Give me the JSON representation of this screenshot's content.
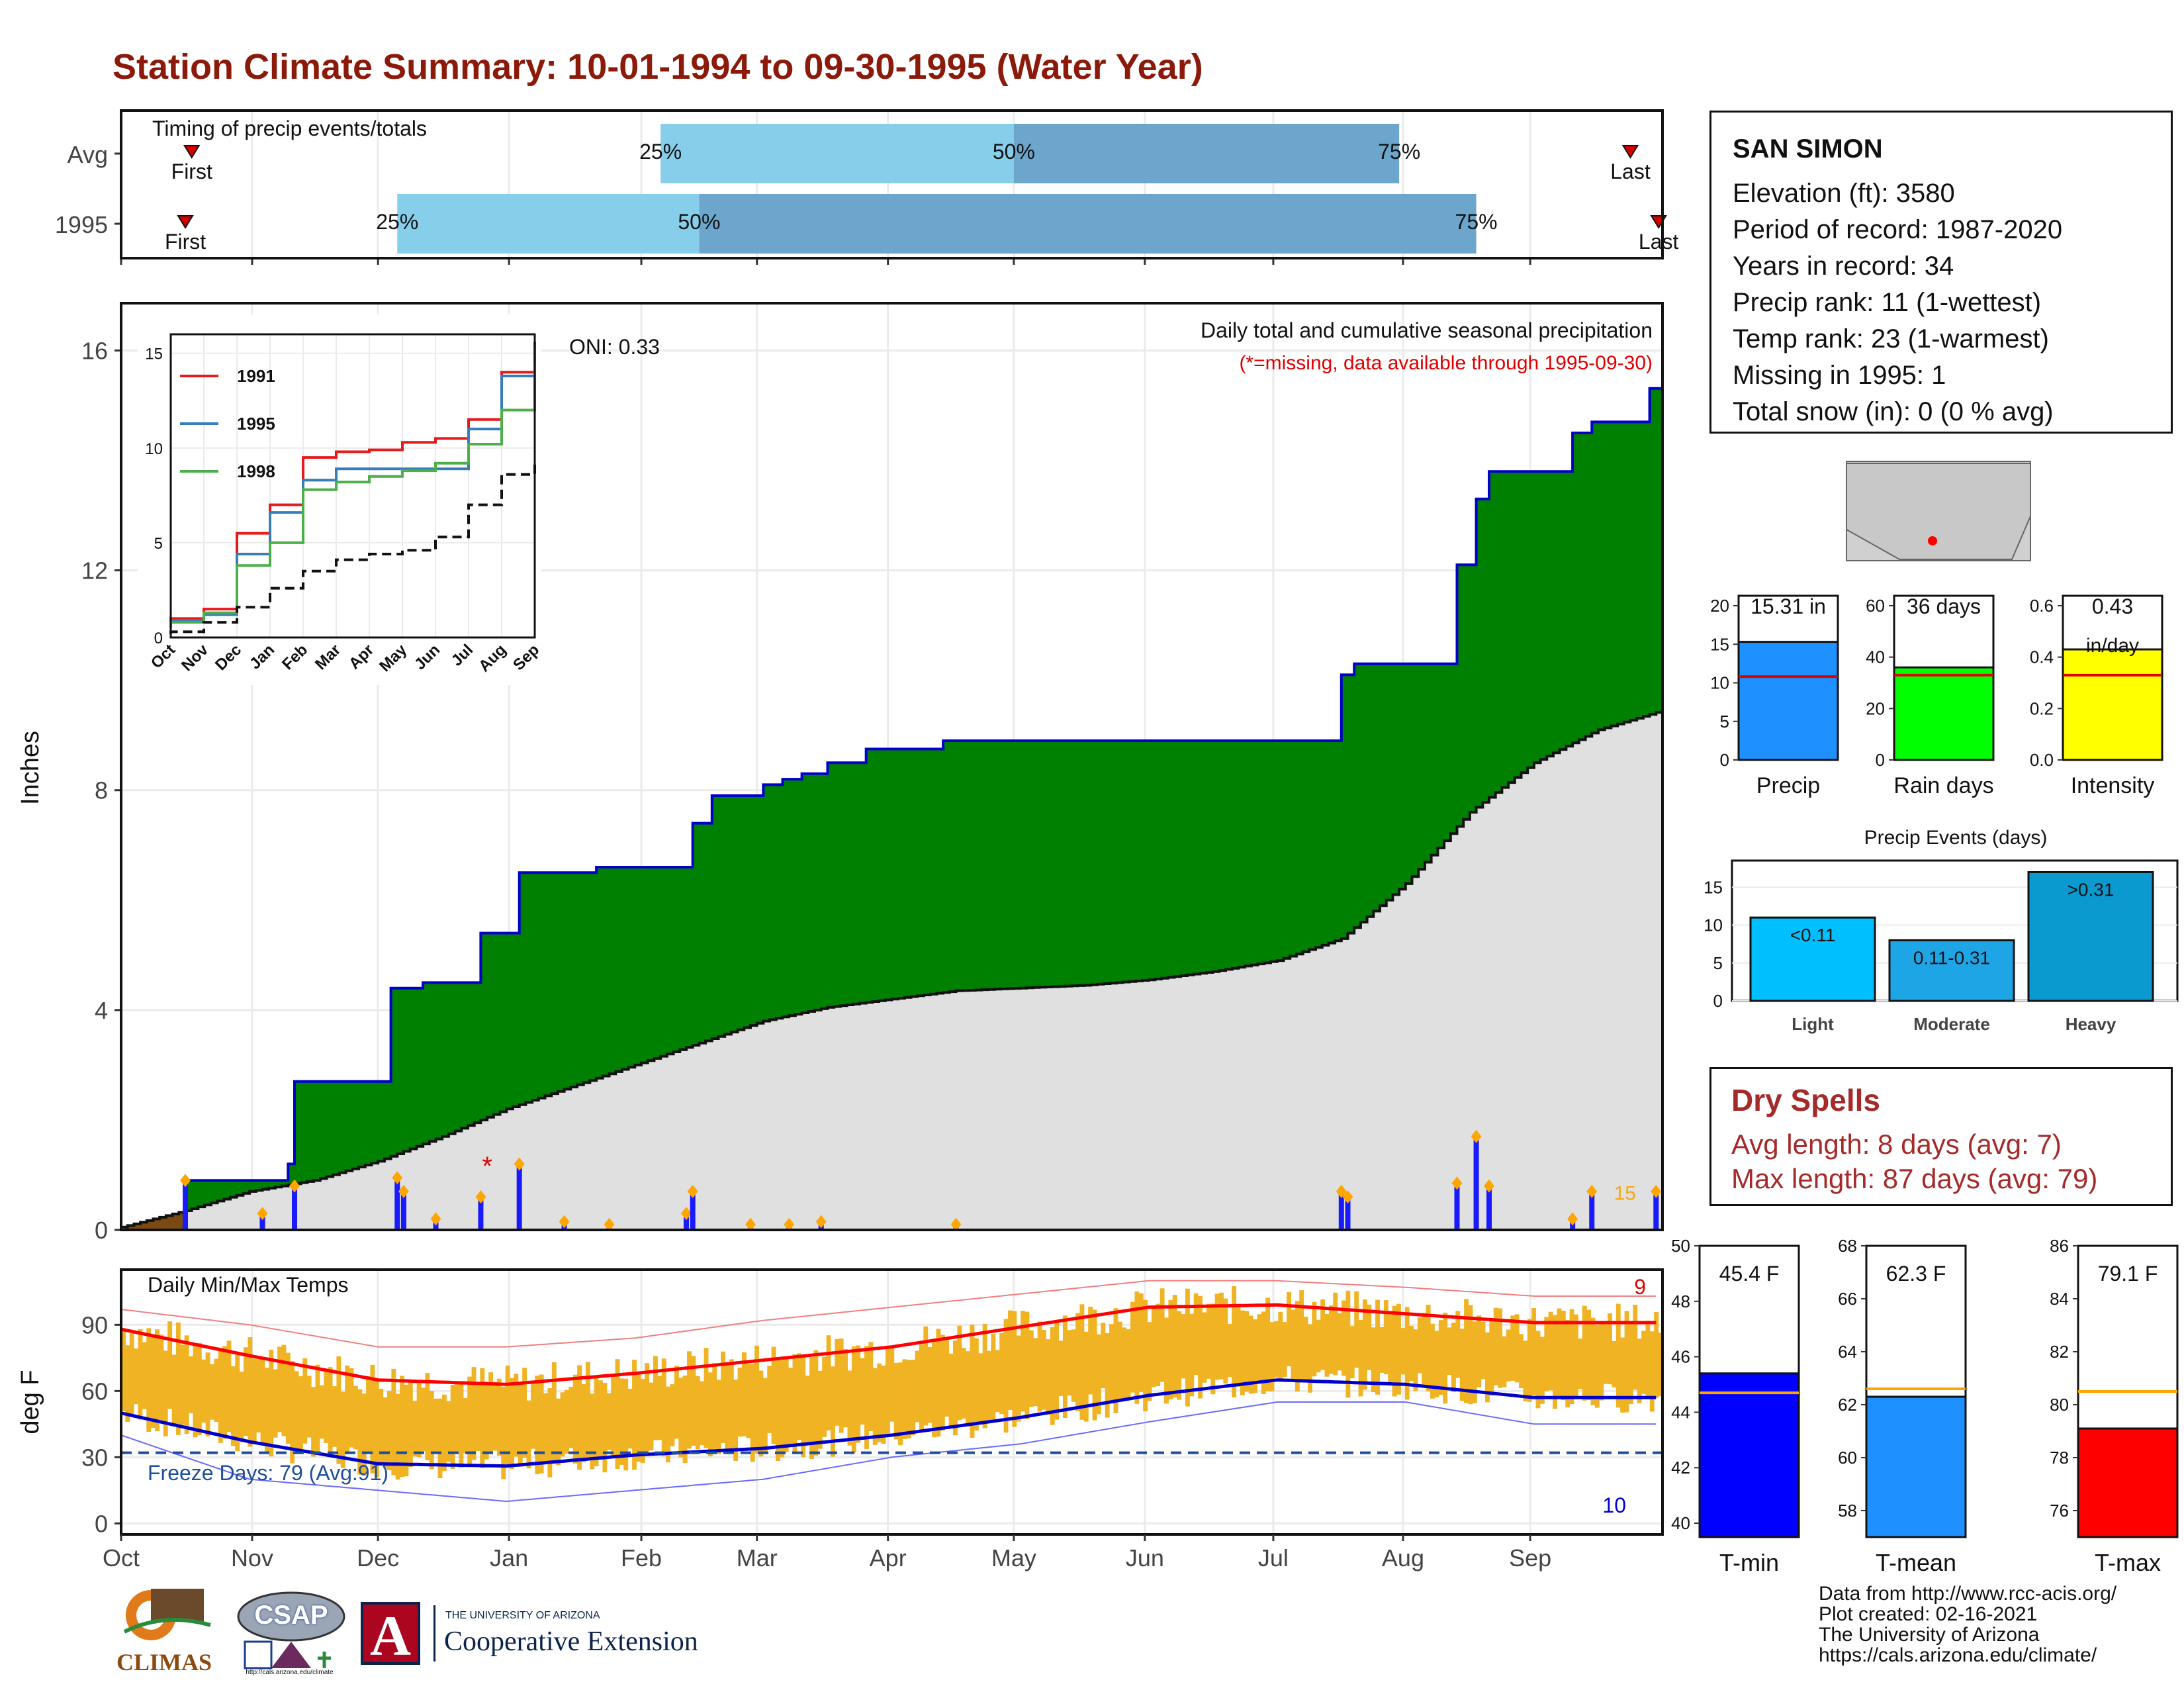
{
  "title": "Station Climate Summary: 10-01-1994 to 09-30-1995 (Water Year)",
  "timing": {
    "label": "Timing of precip events/totals",
    "rows": [
      {
        "name": "Avg",
        "first_label": "First",
        "last_label": "Last",
        "first_month": 0.55,
        "last_month": 11.75,
        "p25": 4.2,
        "p50": 6.95,
        "p75": 9.95,
        "p25_label": "25%",
        "p50_label": "50%",
        "p75_label": "75%"
      },
      {
        "name": "1995",
        "first_label": "First",
        "last_label": "Last",
        "first_month": 0.5,
        "last_month": 11.97,
        "p25": 2.15,
        "p50": 4.5,
        "p75": 10.55,
        "p25_label": "25%",
        "p50_label": "50%",
        "p75_label": "75%"
      }
    ],
    "colors": {
      "early": "#87ceeb",
      "late": "#6ca6cd",
      "marker": "#d40000"
    }
  },
  "main": {
    "ylabel": "Inches",
    "note": "Daily total and cumulative seasonal precipitation",
    "missing_note": "(*=missing, data available through 1995-09-30)",
    "oni": "ONI: 0.33",
    "count_label": "15",
    "y_ticks": [
      "0",
      "4",
      "8",
      "12",
      "16"
    ],
    "colors": {
      "observed": "#008000",
      "average": "#e0e0e0",
      "line": "#0000cd",
      "deficit": "#7b4a12",
      "bars": "#1a1aff",
      "event": "#ffa500",
      "missing": "#e00000"
    }
  },
  "months": [
    "Oct",
    "Nov",
    "Dec",
    "Jan",
    "Feb",
    "Mar",
    "Apr",
    "May",
    "Jun",
    "Jul",
    "Aug",
    "Sep"
  ],
  "inset": {
    "y_ticks": [
      "0",
      "5",
      "10",
      "15"
    ],
    "series": [
      {
        "name": "1991",
        "color": "#e41a1c"
      },
      {
        "name": "1995",
        "color": "#377eb8"
      },
      {
        "name": "1998",
        "color": "#4daf4a"
      }
    ]
  },
  "temps": {
    "label": "Daily Min/Max Temps",
    "ylabel": "deg F",
    "freeze_label": "Freeze Days: 79 (Avg:91)",
    "record_high_count": "9",
    "record_low_count": "10",
    "y_ticks": [
      "0",
      "30",
      "60",
      "90"
    ],
    "colors": {
      "range": "#f0b323",
      "avg_max": "#ff0000",
      "avg_min": "#0000cd",
      "rec_max": "#f08080",
      "rec_min": "#6a6aff",
      "freeze": "#1f4e9a"
    }
  },
  "station": {
    "name": "SAN SIMON",
    "lines": [
      "Elevation (ft): 3580",
      "Period of record: 1987-2020",
      "Years in record: 34",
      "Precip rank: 11 (1-wettest)",
      "Temp rank: 23 (1-warmest)",
      "Missing in 1995: 1",
      "Total snow (in): 0 (0 % avg)"
    ]
  },
  "precip_bars": [
    {
      "label": "Precip",
      "value_label": "15.31 in",
      "value": 15.31,
      "avg": 10.8,
      "max": 20,
      "ticks": [
        "0",
        "5",
        "10",
        "15",
        "20"
      ],
      "color": "#1e90ff"
    },
    {
      "label": "Rain days",
      "value_label": "36 days",
      "value": 36,
      "avg": 33,
      "max": 60,
      "ticks": [
        "0",
        "20",
        "40",
        "60"
      ],
      "color": "#00ff00"
    },
    {
      "label": "Intensity",
      "value_label": "0.43",
      "value_label2": "in/day",
      "value": 0.43,
      "avg": 0.33,
      "max": 0.6,
      "ticks": [
        "0.0",
        "0.2",
        "0.4",
        "0.6"
      ],
      "color": "#ffff00"
    }
  ],
  "events": {
    "title": "Precip Events (days)",
    "ticks": [
      "0",
      "5",
      "10",
      "15"
    ],
    "bars": [
      {
        "category": "Light",
        "label": "<0.11",
        "value": 11,
        "color": "#00bfff"
      },
      {
        "category": "Moderate",
        "label": "0.11-0.31",
        "value": 8,
        "color": "#1ea5e6"
      },
      {
        "category": "Heavy",
        "label": ">0.31",
        "value": 17,
        "color": "#0a9ad0"
      }
    ]
  },
  "dry": {
    "title": "Dry Spells",
    "avg_line": "Avg length: 8 days (avg: 7)",
    "max_line": "Max length: 87 days (avg: 79)"
  },
  "temp_bars": [
    {
      "label": "T-min",
      "value_label": "45.4 F",
      "value": 45.4,
      "avg": 44.7,
      "min": 39.5,
      "max": 50,
      "ticks": [
        "40",
        "42",
        "44",
        "46",
        "48",
        "50"
      ],
      "color": "#0000ff"
    },
    {
      "label": "T-mean",
      "value_label": "62.3 F",
      "value": 62.3,
      "avg": 62.6,
      "min": 57,
      "max": 68,
      "ticks": [
        "58",
        "60",
        "62",
        "64",
        "66",
        "68"
      ],
      "color": "#1e90ff"
    },
    {
      "label": "T-max",
      "value_label": "79.1 F",
      "value": 79.1,
      "avg": 80.5,
      "min": 75,
      "max": 86,
      "ticks": [
        "76",
        "78",
        "80",
        "82",
        "84",
        "86"
      ],
      "color": "#ff0000"
    }
  ],
  "credits": [
    "Data from http://www.rcc-acis.org/",
    "Plot created: 02-16-2021",
    "The University of Arizona",
    "https://cals.arizona.edu/climate/"
  ],
  "logos": {
    "climas": "CLIMAS",
    "csap": "CSAP",
    "csap_url": "http://cals.arizona.edu/climate",
    "ua_letter": "A",
    "ua_small": "THE UNIVERSITY OF ARIZONA",
    "ua_big": "Cooperative Extension"
  },
  "chart_data": [
    {
      "type": "area",
      "title": "Daily total and cumulative seasonal precipitation",
      "ylabel": "Inches",
      "ylim": [
        0,
        16.5
      ],
      "x": [
        "Oct",
        "Nov",
        "Dec",
        "Jan",
        "Feb",
        "Mar",
        "Apr",
        "May",
        "Jun",
        "Jul",
        "Aug",
        "Sep"
      ],
      "series": [
        {
          "name": "1995",
          "steps_month_value": [
            [
              0,
              0
            ],
            [
              0.5,
              0.9
            ],
            [
              1.3,
              1.2
            ],
            [
              1.35,
              2.7
            ],
            [
              2.1,
              4.4
            ],
            [
              2.35,
              4.5
            ],
            [
              2.8,
              5.4
            ],
            [
              3.1,
              6.5
            ],
            [
              3.7,
              6.6
            ],
            [
              4.45,
              7.4
            ],
            [
              4.6,
              7.9
            ],
            [
              5.0,
              8.1
            ],
            [
              5.15,
              8.2
            ],
            [
              5.3,
              8.3
            ],
            [
              5.5,
              8.5
            ],
            [
              5.8,
              8.75
            ],
            [
              6.4,
              8.9
            ],
            [
              9.5,
              8.9
            ],
            [
              9.5,
              10.1
            ],
            [
              9.6,
              10.3
            ],
            [
              10.4,
              12.1
            ],
            [
              10.55,
              13.3
            ],
            [
              10.65,
              13.8
            ],
            [
              11.3,
              14.5
            ],
            [
              11.45,
              14.7
            ],
            [
              11.9,
              15.31
            ]
          ]
        },
        {
          "name": "Avg",
          "points_month_value": [
            [
              0,
              0.05
            ],
            [
              0.5,
              0.35
            ],
            [
              1.0,
              0.7
            ],
            [
              1.5,
              0.9
            ],
            [
              2.0,
              1.25
            ],
            [
              2.5,
              1.7
            ],
            [
              3.0,
              2.2
            ],
            [
              3.5,
              2.6
            ],
            [
              4.0,
              3.0
            ],
            [
              4.5,
              3.4
            ],
            [
              5.0,
              3.8
            ],
            [
              5.5,
              4.05
            ],
            [
              6.0,
              4.2
            ],
            [
              6.5,
              4.35
            ],
            [
              7.0,
              4.4
            ],
            [
              7.5,
              4.45
            ],
            [
              8.0,
              4.55
            ],
            [
              8.5,
              4.7
            ],
            [
              9.0,
              4.9
            ],
            [
              9.5,
              5.3
            ],
            [
              10.0,
              6.3
            ],
            [
              10.5,
              7.6
            ],
            [
              11.0,
              8.5
            ],
            [
              11.5,
              9.1
            ],
            [
              12.0,
              9.45
            ]
          ]
        }
      ],
      "daily_totals_month_value": [
        [
          0.5,
          0.9
        ],
        [
          1.1,
          0.3
        ],
        [
          1.35,
          0.8
        ],
        [
          2.15,
          0.95
        ],
        [
          2.2,
          0.7
        ],
        [
          2.45,
          0.2
        ],
        [
          2.8,
          0.6
        ],
        [
          3.1,
          1.2
        ],
        [
          3.45,
          0.15
        ],
        [
          3.8,
          0.1
        ],
        [
          4.4,
          0.3
        ],
        [
          4.45,
          0.7
        ],
        [
          4.9,
          0.1
        ],
        [
          5.2,
          0.1
        ],
        [
          5.45,
          0.15
        ],
        [
          6.5,
          0.1
        ],
        [
          9.5,
          0.7
        ],
        [
          9.55,
          0.6
        ],
        [
          10.4,
          0.85
        ],
        [
          10.55,
          1.7
        ],
        [
          10.65,
          0.8
        ],
        [
          11.3,
          0.2
        ],
        [
          11.45,
          0.7
        ],
        [
          11.95,
          0.7
        ]
      ]
    },
    {
      "type": "line",
      "title": "",
      "x": [
        "Oct",
        "Nov",
        "Dec",
        "Jan",
        "Feb",
        "Mar",
        "Apr",
        "May",
        "Jun",
        "Jul",
        "Aug",
        "Sep"
      ],
      "ylim": [
        0,
        16
      ],
      "series": [
        {
          "name": "1991",
          "values": [
            1.0,
            1.5,
            5.5,
            7.0,
            9.5,
            9.8,
            9.9,
            10.3,
            10.5,
            11.5,
            14.0,
            15.6
          ]
        },
        {
          "name": "1995",
          "values": [
            0.9,
            1.2,
            4.4,
            6.6,
            8.3,
            8.9,
            8.9,
            8.9,
            8.9,
            11.0,
            13.8,
            15.31
          ]
        },
        {
          "name": "1998",
          "values": [
            0.8,
            1.3,
            3.8,
            5.0,
            7.8,
            8.2,
            8.5,
            8.8,
            9.2,
            10.2,
            12.0,
            14.5
          ]
        },
        {
          "name": "Avg",
          "values": [
            0.3,
            0.8,
            1.6,
            2.6,
            3.5,
            4.1,
            4.4,
            4.6,
            5.3,
            7.0,
            8.6,
            9.4
          ]
        }
      ]
    },
    {
      "type": "line",
      "title": "Daily Min/Max Temps",
      "ylabel": "deg F",
      "ylim": [
        -5,
        115
      ],
      "x": [
        "Oct",
        "Nov",
        "Dec",
        "Jan",
        "Feb",
        "Mar",
        "Apr",
        "May",
        "Jun",
        "Jul",
        "Aug",
        "Sep"
      ],
      "series": [
        {
          "name": "Avg max",
          "values": [
            88,
            76,
            65,
            63,
            68,
            74,
            80,
            89,
            98,
            99,
            95,
            91
          ]
        },
        {
          "name": "Avg min",
          "values": [
            50,
            37,
            27,
            26,
            31,
            34,
            40,
            48,
            58,
            65,
            63,
            57
          ]
        },
        {
          "name": "Record max",
          "values": [
            97,
            90,
            80,
            80,
            84,
            92,
            98,
            104,
            110,
            110,
            107,
            103
          ]
        },
        {
          "name": "Record min",
          "values": [
            40,
            20,
            15,
            10,
            15,
            20,
            30,
            36,
            46,
            55,
            55,
            45
          ]
        }
      ],
      "freeze_threshold": 32
    },
    {
      "type": "bar",
      "categories": [
        "Precip",
        "Rain days",
        "Intensity"
      ],
      "values": [
        15.31,
        36,
        0.43
      ]
    },
    {
      "type": "bar",
      "title": "Precip Events (days)",
      "categories": [
        "Light",
        "Moderate",
        "Heavy"
      ],
      "values": [
        11,
        8,
        17
      ]
    },
    {
      "type": "bar",
      "categories": [
        "T-min",
        "T-mean",
        "T-max"
      ],
      "values": [
        45.4,
        62.3,
        79.1
      ]
    }
  ]
}
